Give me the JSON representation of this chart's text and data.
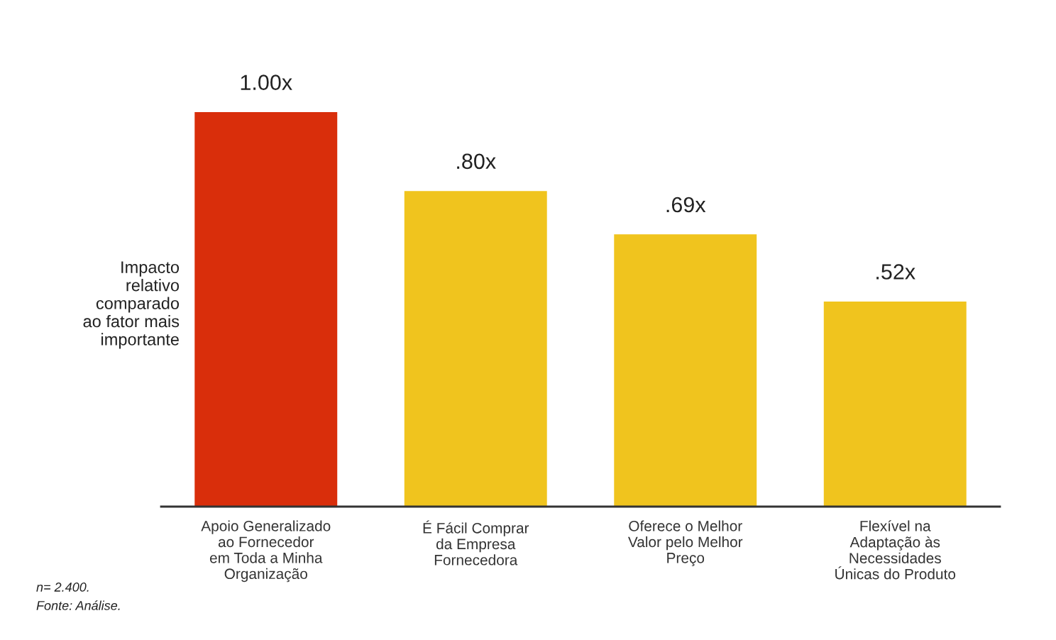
{
  "chart_data": {
    "type": "bar",
    "categories": [
      "Apoio Generalizado\nao Fornecedor\nem Toda a Minha\nOrganização",
      "É Fácil Comprar\nda Empresa\nFornecedora",
      "Oferece o Melhor\nValor pelo Melhor\nPreço",
      "Flexível na\nAdaptação às\nNecessidades\nÚnicas do Produto"
    ],
    "values": [
      1.0,
      0.8,
      0.69,
      0.52
    ],
    "colors": [
      "#d92e0b",
      "#f0c41e",
      "#f0c41e",
      "#f0c41e"
    ],
    "value_labels": [
      "1.00x",
      ".80x",
      ".69x",
      ".52x"
    ],
    "ylabel": "Impacto\nrelativo\ncomparado\nao fator mais\nimportante",
    "tick_labels": "x",
    "grid": false,
    "legend": false,
    "annotations": [
      "n= 2.400.",
      "Fonte: Análise."
    ]
  }
}
